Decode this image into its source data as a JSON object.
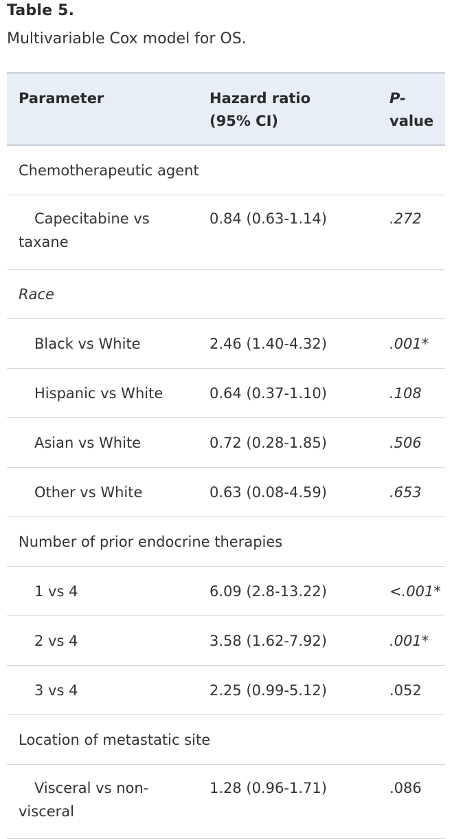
{
  "table_title": "Table 5.",
  "table_caption": "Multivariable Cox model for OS.",
  "headers": {
    "parameter": "Parameter",
    "hazard_ratio_line1": "Hazard ratio",
    "hazard_ratio_line2": "(95% CI)",
    "pvalue_line1": "P-",
    "pvalue_line2": "value"
  },
  "rows": {
    "chemo_group": "Chemotherapeutic agent",
    "capecitabine": {
      "parameter": "Capecitabine vs taxane",
      "hr": "0.84 (0.63-1.14)",
      "p": ".272"
    },
    "race_group": "Race",
    "black": {
      "parameter": "Black vs White",
      "hr": "2.46 (1.40-4.32)",
      "p": ".001*"
    },
    "hispanic": {
      "parameter": "Hispanic vs White",
      "hr": "0.64 (0.37-1.10)",
      "p": ".108"
    },
    "asian": {
      "parameter": "Asian vs White",
      "hr": "0.72 (0.28-1.85)",
      "p": ".506"
    },
    "other": {
      "parameter": "Other vs White",
      "hr": "0.63 (0.08-4.59)",
      "p": ".653"
    },
    "endocrine_group": "Number of prior endocrine therapies",
    "one_vs_four": {
      "parameter": "1 vs 4",
      "hr": "6.09 (2.8-13.22)",
      "p": "<.001*"
    },
    "two_vs_four": {
      "parameter": "2 vs 4",
      "hr": "3.58 (1.62-7.92)",
      "p": ".001*"
    },
    "three_vs_four": {
      "parameter": "3 vs 4",
      "hr": "2.25 (0.99-5.12)",
      "p": ".052"
    },
    "location_group": "Location of metastatic site",
    "visceral": {
      "parameter": "Visceral vs non-visceral",
      "hr": "1.28 (0.96-1.71)",
      "p": ".086"
    }
  }
}
